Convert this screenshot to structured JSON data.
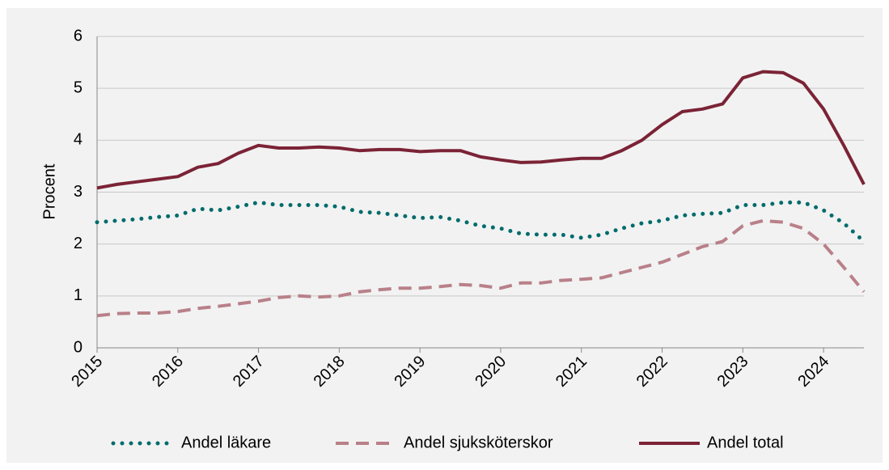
{
  "chart_data": {
    "type": "line",
    "ylabel": "Procent",
    "x": [
      2015,
      2015.25,
      2015.5,
      2015.75,
      2016,
      2016.25,
      2016.5,
      2016.75,
      2017,
      2017.25,
      2017.5,
      2017.75,
      2018,
      2018.25,
      2018.5,
      2018.75,
      2019,
      2019.25,
      2019.5,
      2019.75,
      2020,
      2020.25,
      2020.5,
      2020.75,
      2021,
      2021.25,
      2021.5,
      2021.75,
      2022,
      2022.25,
      2022.5,
      2022.75,
      2023,
      2023.25,
      2023.5,
      2023.75,
      2024,
      2024.25,
      2024.5
    ],
    "series": [
      {
        "name": "Andel läkare",
        "color": "#006b6b",
        "style": "dotted",
        "values": [
          2.42,
          2.45,
          2.48,
          2.52,
          2.55,
          2.68,
          2.65,
          2.72,
          2.8,
          2.75,
          2.75,
          2.75,
          2.72,
          2.62,
          2.6,
          2.55,
          2.5,
          2.52,
          2.45,
          2.35,
          2.3,
          2.2,
          2.18,
          2.18,
          2.12,
          2.18,
          2.3,
          2.4,
          2.45,
          2.55,
          2.58,
          2.6,
          2.75,
          2.75,
          2.8,
          2.8,
          2.65,
          2.4,
          2.05
        ]
      },
      {
        "name": "Andel sjuksköterskor",
        "color": "#b98089",
        "style": "dashed",
        "values": [
          0.62,
          0.66,
          0.67,
          0.67,
          0.7,
          0.76,
          0.8,
          0.85,
          0.9,
          0.97,
          1.0,
          0.98,
          1.0,
          1.08,
          1.12,
          1.15,
          1.15,
          1.18,
          1.22,
          1.2,
          1.15,
          1.25,
          1.25,
          1.3,
          1.32,
          1.35,
          1.45,
          1.55,
          1.65,
          1.8,
          1.95,
          2.05,
          2.35,
          2.45,
          2.42,
          2.3,
          2.0,
          1.55,
          1.08
        ]
      },
      {
        "name": "Andel total",
        "color": "#7b2336",
        "style": "solid",
        "values": [
          3.08,
          3.15,
          3.2,
          3.25,
          3.3,
          3.48,
          3.55,
          3.75,
          3.9,
          3.85,
          3.85,
          3.87,
          3.85,
          3.8,
          3.82,
          3.82,
          3.78,
          3.8,
          3.8,
          3.68,
          3.62,
          3.57,
          3.58,
          3.62,
          3.65,
          3.65,
          3.8,
          4.0,
          4.3,
          4.55,
          4.6,
          4.7,
          5.2,
          5.32,
          5.3,
          5.1,
          4.6,
          3.9,
          3.15
        ]
      }
    ],
    "xlim": [
      2015,
      2024.5
    ],
    "xticks": [
      2015,
      2016,
      2017,
      2018,
      2019,
      2020,
      2021,
      2022,
      2023,
      2024
    ],
    "ylim": [
      0,
      6
    ],
    "yticks": [
      0,
      1,
      2,
      3,
      4,
      5,
      6
    ],
    "grid": true,
    "legend": "bottom"
  }
}
